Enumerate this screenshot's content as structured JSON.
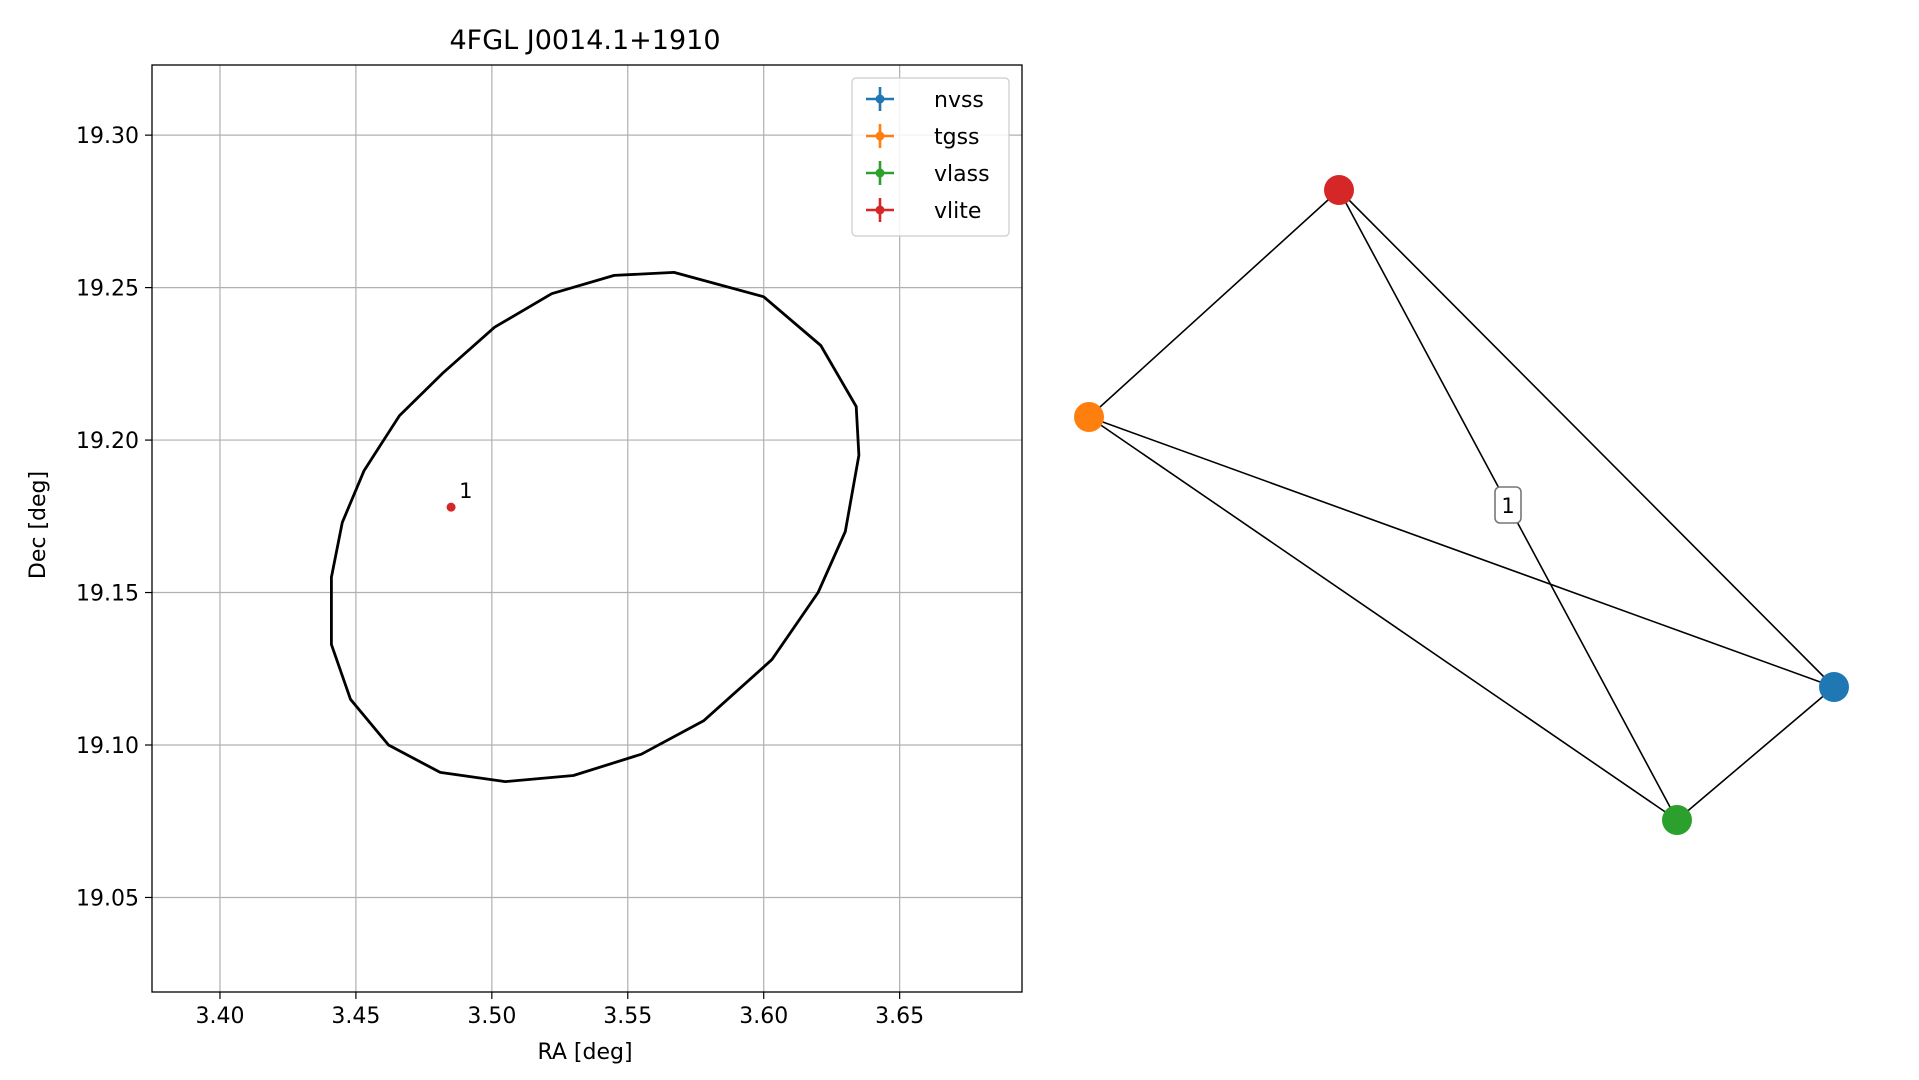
{
  "chart_data": [
    {
      "type": "scatter",
      "title": "4FGL J0014.1+1910",
      "xlabel": "RA [deg]",
      "ylabel": "Dec [deg]",
      "xlim": [
        3.375,
        3.695
      ],
      "ylim": [
        19.019,
        19.323
      ],
      "xticks": [
        "3.40",
        "3.45",
        "3.50",
        "3.55",
        "3.60",
        "3.65"
      ],
      "yticks": [
        "19.05",
        "19.10",
        "19.15",
        "19.20",
        "19.25",
        "19.30"
      ],
      "grid": true,
      "legend_position": "top-right",
      "legend": [
        {
          "name": "nvss",
          "color": "#1f77b4"
        },
        {
          "name": "tgss",
          "color": "#ff7f0e"
        },
        {
          "name": "vlass",
          "color": "#2ca02c"
        },
        {
          "name": "vlite",
          "color": "#d62728"
        }
      ],
      "points": [
        {
          "series": "vlite",
          "x": 3.485,
          "y": 19.178,
          "label": "1",
          "color": "#d62728"
        }
      ],
      "ellipse": {
        "outline": [
          [
            3.567,
            19.255
          ],
          [
            3.6,
            19.247
          ],
          [
            3.621,
            19.231
          ],
          [
            3.634,
            19.211
          ],
          [
            3.635,
            19.195
          ],
          [
            3.63,
            19.17
          ],
          [
            3.62,
            19.15
          ],
          [
            3.603,
            19.128
          ],
          [
            3.578,
            19.108
          ],
          [
            3.555,
            19.097
          ],
          [
            3.53,
            19.09
          ],
          [
            3.505,
            19.088
          ],
          [
            3.481,
            19.091
          ],
          [
            3.462,
            19.1
          ],
          [
            3.448,
            19.115
          ],
          [
            3.441,
            19.133
          ],
          [
            3.441,
            19.155
          ],
          [
            3.445,
            19.173
          ],
          [
            3.453,
            19.19
          ],
          [
            3.466,
            19.208
          ],
          [
            3.482,
            19.222
          ],
          [
            3.501,
            19.237
          ],
          [
            3.522,
            19.248
          ],
          [
            3.545,
            19.254
          ]
        ],
        "color": "#000000"
      }
    },
    {
      "type": "network",
      "nodes": [
        {
          "id": "vlite",
          "color": "#d62728"
        },
        {
          "id": "tgss",
          "color": "#ff7f0e"
        },
        {
          "id": "nvss",
          "color": "#1f77b4"
        },
        {
          "id": "vlass",
          "color": "#2ca02c"
        }
      ],
      "edges": [
        {
          "from": "vlite",
          "to": "tgss"
        },
        {
          "from": "vlite",
          "to": "nvss"
        },
        {
          "from": "vlite",
          "to": "vlass",
          "label": "1"
        },
        {
          "from": "tgss",
          "to": "nvss"
        },
        {
          "from": "tgss",
          "to": "vlass"
        },
        {
          "from": "nvss",
          "to": "vlass"
        }
      ]
    }
  ]
}
